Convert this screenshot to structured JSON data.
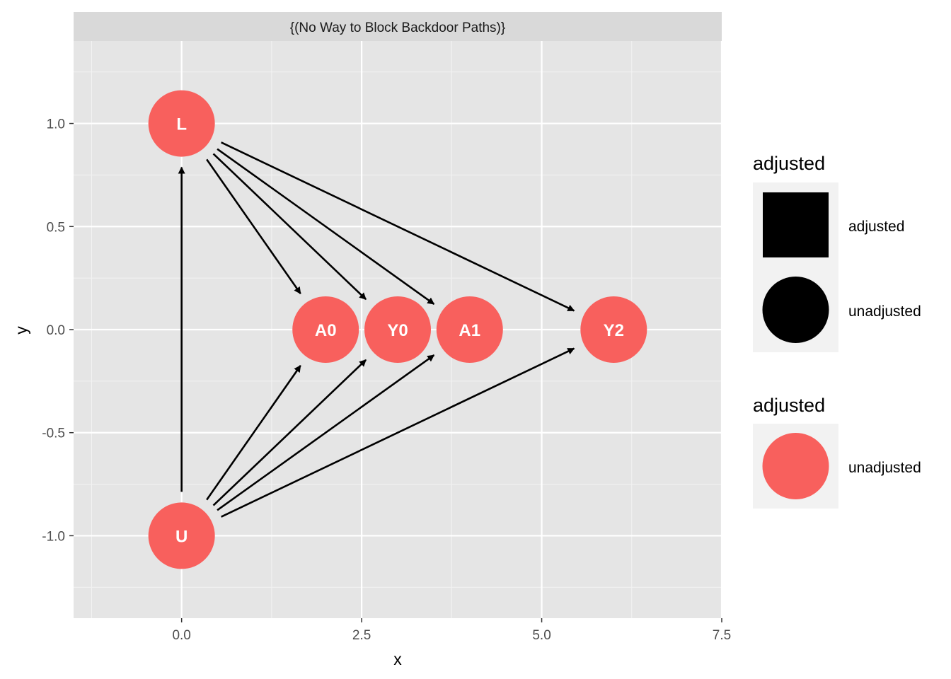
{
  "colors": {
    "panel": "#e5e5e5",
    "grid_major": "#ffffff",
    "grid_minor": "#f2f2f2",
    "strip": "#d9d9d9",
    "node": "#f8605d",
    "edge": "#000000",
    "legend_key_bg": "#f2f2f2"
  },
  "chart_data": {
    "type": "diagram",
    "facet_title": "{(No Way to Block Backdoor Paths)}",
    "xlabel": "x",
    "ylabel": "y",
    "xlim": [
      -1.5,
      7.5
    ],
    "ylim": [
      -1.4,
      1.4
    ],
    "x_ticks": [
      {
        "value": 0,
        "label": "0.0"
      },
      {
        "value": 2.5,
        "label": "2.5"
      },
      {
        "value": 5,
        "label": "5.0"
      },
      {
        "value": 7.5,
        "label": "7.5"
      }
    ],
    "y_ticks": [
      {
        "value": -1,
        "label": "-1.0"
      },
      {
        "value": -0.5,
        "label": "-0.5"
      },
      {
        "value": 0,
        "label": "0.0"
      },
      {
        "value": 0.5,
        "label": "0.5"
      },
      {
        "value": 1,
        "label": "1.0"
      }
    ],
    "nodes": [
      {
        "id": "L",
        "label": "L",
        "x": 0,
        "y": 1
      },
      {
        "id": "U",
        "label": "U",
        "x": 0,
        "y": -1
      },
      {
        "id": "A0",
        "label": "A0",
        "x": 2,
        "y": 0
      },
      {
        "id": "Y0",
        "label": "Y0",
        "x": 3,
        "y": 0
      },
      {
        "id": "A1",
        "label": "A1",
        "x": 4,
        "y": 0
      },
      {
        "id": "Y2",
        "label": "Y2",
        "x": 6,
        "y": 0
      }
    ],
    "edges": [
      {
        "from": "U",
        "to": "L"
      },
      {
        "from": "L",
        "to": "A0"
      },
      {
        "from": "L",
        "to": "Y0"
      },
      {
        "from": "L",
        "to": "A1"
      },
      {
        "from": "L",
        "to": "Y2"
      },
      {
        "from": "U",
        "to": "A0"
      },
      {
        "from": "U",
        "to": "Y0"
      },
      {
        "from": "U",
        "to": "A1"
      },
      {
        "from": "U",
        "to": "Y2"
      }
    ]
  },
  "legends": [
    {
      "title": "adjusted",
      "keys": [
        {
          "shape": "square",
          "label": "adjusted"
        },
        {
          "shape": "circle",
          "label": "unadjusted"
        }
      ]
    },
    {
      "title": "adjusted",
      "keys": [
        {
          "shape": "circle",
          "color": "#f8605d",
          "label": "unadjusted"
        }
      ]
    }
  ]
}
